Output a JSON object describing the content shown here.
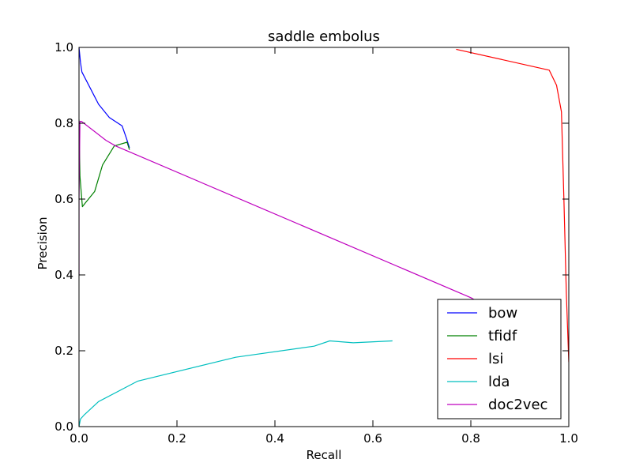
{
  "chart_data": {
    "type": "line",
    "title": "saddle embolus",
    "xlabel": "Recall",
    "ylabel": "Precision",
    "xlim": [
      0.0,
      1.0
    ],
    "ylim": [
      0.0,
      1.0
    ],
    "xticks": [
      0.0,
      0.2,
      0.4,
      0.6,
      0.8,
      1.0
    ],
    "yticks": [
      0.0,
      0.2,
      0.4,
      0.6,
      0.8,
      1.0
    ],
    "xtick_labels": [
      "0.0",
      "0.2",
      "0.4",
      "0.6",
      "0.8",
      "1.0"
    ],
    "ytick_labels": [
      "0.0",
      "0.2",
      "0.4",
      "0.6",
      "0.8",
      "1.0"
    ],
    "grid": false,
    "legend_position": "lower-right",
    "series": [
      {
        "name": "bow",
        "color": "#0000ff",
        "x": [
          0.0,
          0.003,
          0.006,
          0.04,
          0.062,
          0.088,
          0.097,
          0.103
        ],
        "y": [
          1.0,
          0.96,
          0.935,
          0.85,
          0.815,
          0.793,
          0.76,
          0.735
        ]
      },
      {
        "name": "tfidf",
        "color": "#008000",
        "x": [
          0.0,
          0.002,
          0.007,
          0.013,
          0.032,
          0.048,
          0.072,
          0.098,
          0.103
        ],
        "y": [
          0.81,
          0.66,
          0.58,
          0.59,
          0.62,
          0.69,
          0.74,
          0.75,
          0.73
        ]
      },
      {
        "name": "lsi",
        "color": "#ff0000",
        "x": [
          0.77,
          0.96,
          0.975,
          0.985,
          0.99,
          0.995,
          1.0
        ],
        "y": [
          0.995,
          0.94,
          0.9,
          0.83,
          0.6,
          0.35,
          0.17
        ]
      },
      {
        "name": "lda",
        "color": "#00bfbf",
        "x": [
          0.0,
          0.003,
          0.01,
          0.04,
          0.12,
          0.32,
          0.48,
          0.512,
          0.56,
          0.64
        ],
        "y": [
          0.0,
          0.02,
          0.03,
          0.066,
          0.12,
          0.183,
          0.212,
          0.226,
          0.221,
          0.226
        ]
      },
      {
        "name": "doc2vec",
        "color": "#bf00bf",
        "x": [
          0.0,
          0.0,
          0.002,
          0.005,
          0.055,
          0.075,
          0.8,
          0.84
        ],
        "y": [
          0.4,
          0.6,
          0.805,
          0.805,
          0.755,
          0.74,
          0.34,
          0.31
        ]
      }
    ]
  }
}
